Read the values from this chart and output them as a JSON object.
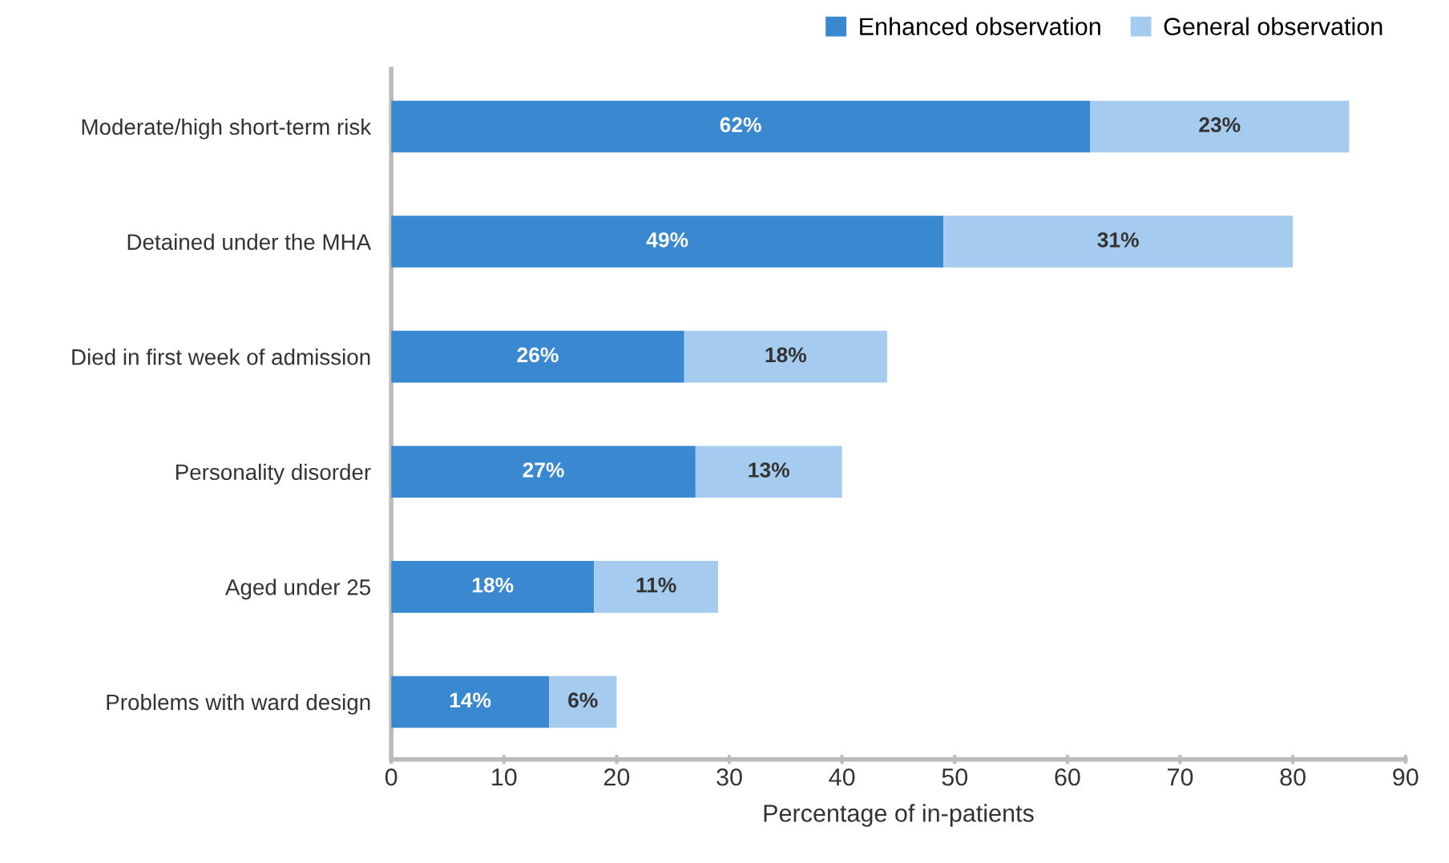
{
  "chart_data": {
    "type": "bar",
    "orientation": "horizontal",
    "stacked": true,
    "xlabel": "Percentage of in-patients",
    "categories": [
      "Moderate/high short-term risk",
      "Detained under the MHA",
      "Died in first week of admission",
      "Personality disorder",
      "Aged under 25",
      "Problems with ward design"
    ],
    "series": [
      {
        "name": "Enhanced observation",
        "color": "#3a88d0",
        "values": [
          62,
          49,
          26,
          27,
          18,
          14
        ],
        "value_labels": [
          "62%",
          "49%",
          "26%",
          "27%",
          "18%",
          "14%"
        ]
      },
      {
        "name": "General observation",
        "color": "#a5cbee",
        "values": [
          23,
          31,
          18,
          13,
          11,
          6
        ],
        "value_labels": [
          "23%",
          "31%",
          "18%",
          "13%",
          "11%",
          "6%"
        ]
      }
    ],
    "xlim": [
      0,
      90
    ],
    "xticks": [
      0,
      10,
      20,
      30,
      40,
      50,
      60,
      70,
      80,
      90
    ],
    "grid": false,
    "legend": "top right"
  }
}
